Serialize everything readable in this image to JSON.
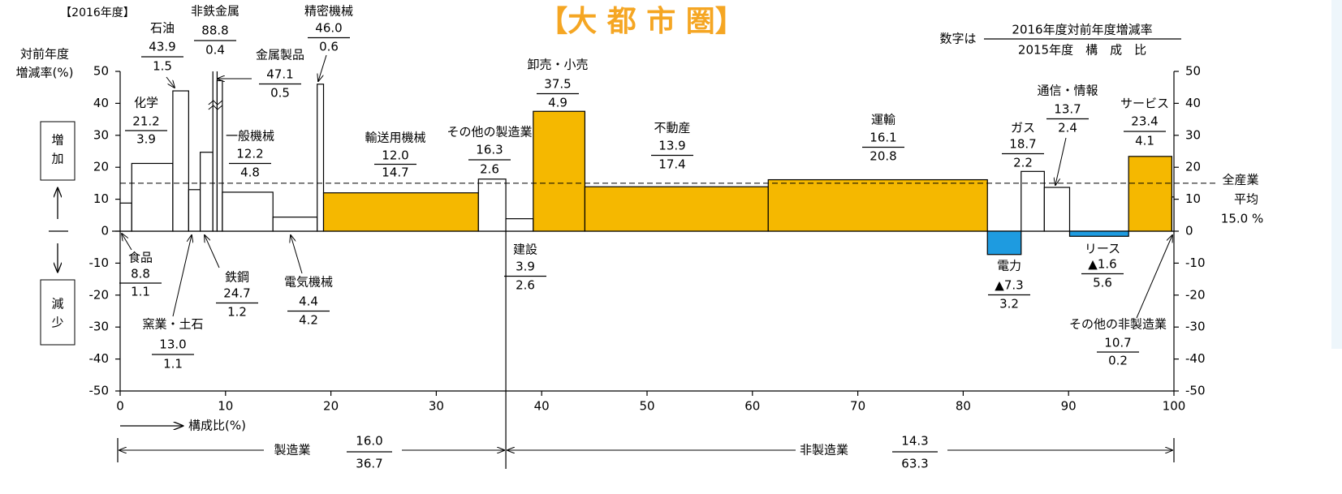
{
  "chart_data": {
    "type": "marimekko",
    "period": "【2016年度】",
    "title": "【大 都 市 圏】",
    "y_label": [
      "対前年度",
      "増減率(%)"
    ],
    "x_label": "構成比(%)",
    "increase_label": [
      "増",
      "加"
    ],
    "decrease_label": [
      "減",
      "少"
    ],
    "legend_note": {
      "prefix": "数字は",
      "numerator": "2016年度対前年度増減率",
      "denominator": "2015年度　構　成　比"
    },
    "average": {
      "name": [
        "全産業",
        "平均"
      ],
      "value": 15,
      "label": "15.0 %"
    },
    "categories": [
      "食品",
      "化学",
      "石油",
      "窯業・土石",
      "鉄鋼",
      "非鉄金属",
      "金属製品",
      "一般機械",
      "電気機械",
      "精密機械",
      "輸送用機械",
      "その他の製造業",
      "建設",
      "卸売・小売",
      "不動産",
      "運輸",
      "電力",
      "ガス",
      "通信・情報",
      "リース",
      "サービス",
      "その他の非製造業"
    ],
    "values": [
      8.8,
      21.2,
      43.9,
      13.0,
      24.7,
      88.8,
      47.1,
      12.2,
      4.4,
      46.0,
      12.0,
      16.3,
      3.9,
      37.5,
      13.9,
      16.1,
      -7.3,
      18.7,
      13.7,
      -1.6,
      23.4,
      10.7
    ],
    "value_labels": [
      "8.8",
      "21.2",
      "43.9",
      "13.0",
      "24.7",
      "88.8",
      "47.1",
      "12.2",
      "4.4",
      "46.0",
      "12.0",
      "16.3",
      "3.9",
      "37.5",
      "13.9",
      "16.1",
      "▲7.3",
      "18.7",
      "13.7",
      "▲1.6",
      "23.4",
      "10.7"
    ],
    "shares": [
      1.1,
      3.9,
      1.5,
      1.1,
      1.2,
      0.4,
      0.5,
      4.8,
      4.2,
      0.6,
      14.7,
      2.6,
      2.6,
      4.9,
      17.4,
      20.8,
      3.2,
      2.2,
      2.4,
      5.6,
      4.1,
      0.2
    ],
    "colors": [
      "#ffffff",
      "#ffffff",
      "#ffffff",
      "#ffffff",
      "#ffffff",
      "#ffffff",
      "#ffffff",
      "#ffffff",
      "#ffffff",
      "#ffffff",
      "#f5b800",
      "#ffffff",
      "#ffffff",
      "#f5b800",
      "#f5b800",
      "#f5b800",
      "#1e9be0",
      "#ffffff",
      "#ffffff",
      "#1e9be0",
      "#f5b800",
      "#ffffff"
    ],
    "groups": [
      {
        "name": "製造業",
        "value": 16.0,
        "value_label": "16.0",
        "share": 36.7
      },
      {
        "name": "非製造業",
        "value": 14.3,
        "value_label": "14.3",
        "share": 63.3
      }
    ],
    "xlim": [
      0,
      100
    ],
    "xticks": [
      0,
      10,
      20,
      30,
      40,
      50,
      60,
      70,
      80,
      90,
      100
    ],
    "ylim": [
      -50,
      50
    ],
    "yticks": [
      -50,
      -40,
      -30,
      -20,
      -10,
      0,
      10,
      20,
      30,
      40,
      50
    ],
    "y2lim": [
      -50,
      50
    ],
    "y2ticks": [
      -50,
      -40,
      -30,
      -20,
      -10,
      0,
      10,
      20,
      30,
      40,
      50
    ]
  }
}
